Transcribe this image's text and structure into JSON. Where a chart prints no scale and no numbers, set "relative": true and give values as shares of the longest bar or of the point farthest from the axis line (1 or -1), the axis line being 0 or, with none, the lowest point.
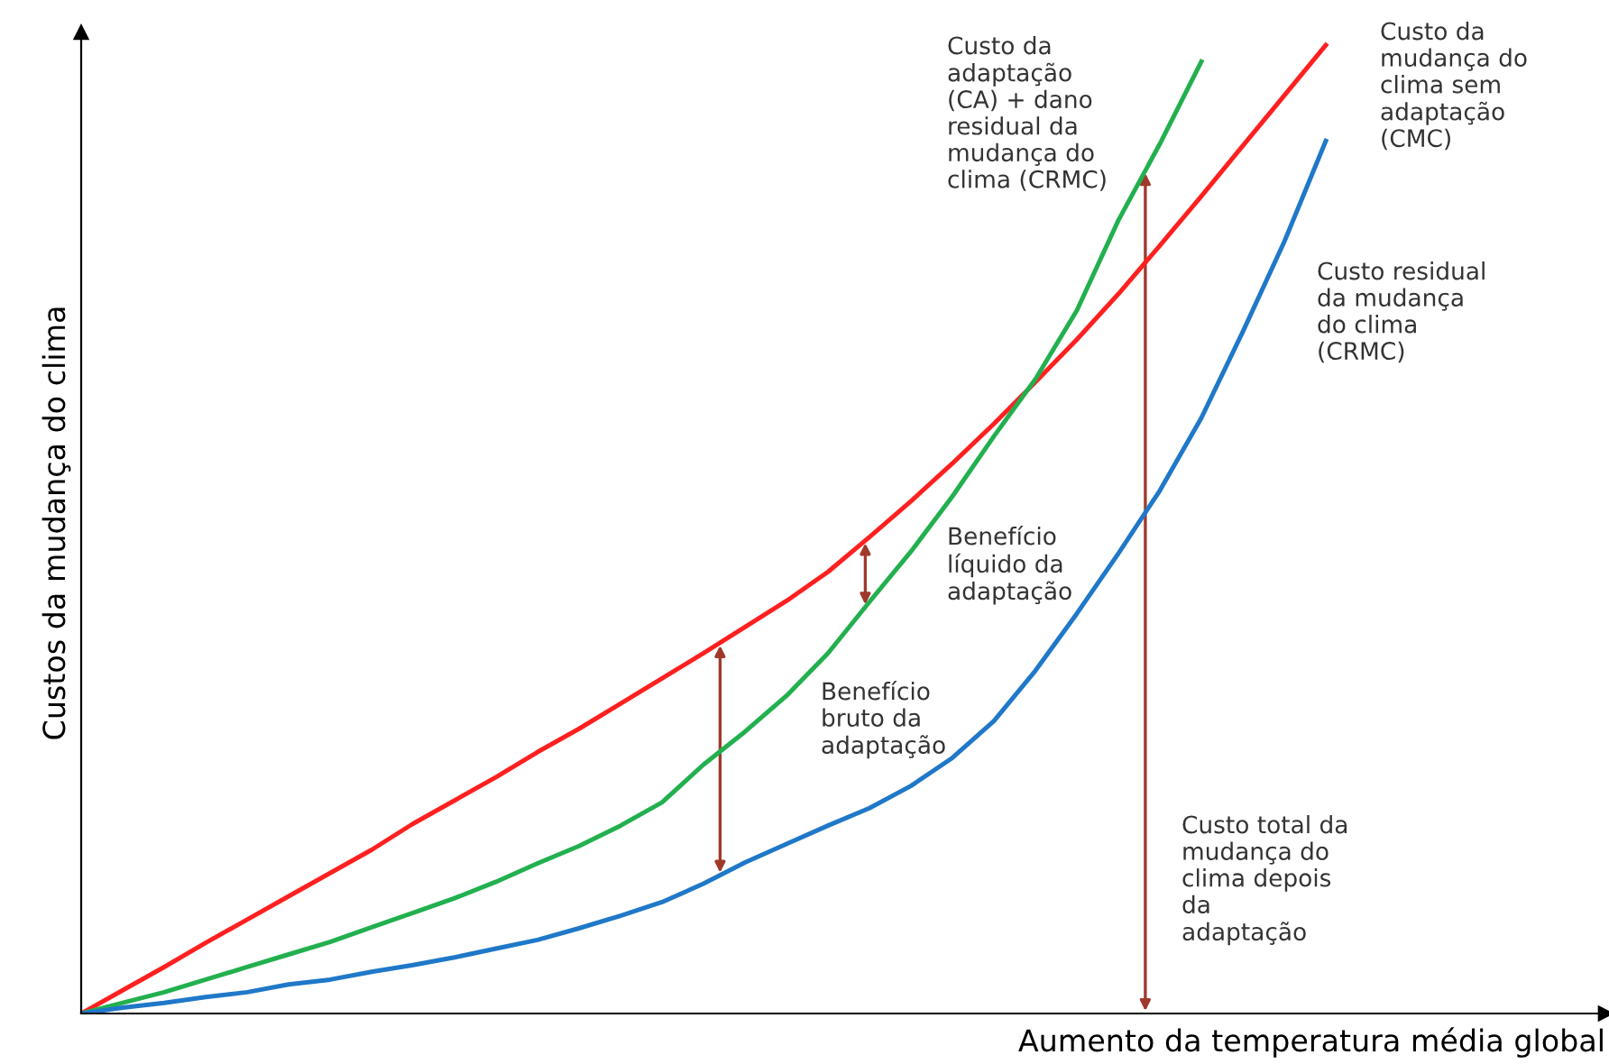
{
  "chart_data": {
    "type": "line",
    "relative": true,
    "xlabel": "Aumento da temperatura média global",
    "ylabel": "Custos da mudança do clima",
    "categories": [
      null,
      null,
      null,
      null,
      null,
      null,
      null,
      null,
      null,
      null,
      null,
      null,
      null,
      null,
      null,
      null,
      null,
      null,
      null,
      null,
      null,
      null,
      null,
      null,
      null,
      null,
      null,
      null,
      null,
      null,
      null
    ],
    "series": [
      {
        "name": "Custo da\nmudança do\nclima sem\nadaptação\n(CMC)",
        "color": "#ff2020",
        "values": [
          0,
          0.024,
          0.048,
          0.073,
          0.097,
          0.121,
          0.145,
          0.169,
          0.196,
          0.22,
          0.244,
          0.27,
          0.294,
          0.32,
          0.346,
          0.372,
          0.399,
          0.426,
          0.456,
          0.492,
          0.529,
          0.568,
          0.609,
          0.652,
          0.696,
          0.743,
          0.793,
          0.844,
          0.896,
          0.948,
          1
        ]
      },
      {
        "name": "Custo da\nadaptação\n(CA) + dano\nresidual da\nmudança do\nclima (CRMC)",
        "color": "#22b04f",
        "values": [
          0,
          0.011,
          0.022,
          0.035,
          0.048,
          0.061,
          0.074,
          0.089,
          0.104,
          0.119,
          0.136,
          0.155,
          0.173,
          0.194,
          0.218,
          0.257,
          0.291,
          0.328,
          0.372,
          0.425,
          0.477,
          0.534,
          0.596,
          0.655,
          0.726,
          0.819,
          0.898,
          0.983,
          null,
          null,
          null
        ]
      },
      {
        "name": "Custo residual\nda mudança\ndo clima\n(CRMC)",
        "color": "#1f78c8",
        "values": [
          0,
          0.006,
          0.011,
          0.017,
          0.022,
          0.03,
          0.035,
          0.043,
          0.05,
          0.058,
          0.067,
          0.076,
          0.088,
          0.101,
          0.115,
          0.134,
          0.156,
          0.175,
          0.194,
          0.212,
          0.235,
          0.264,
          0.302,
          0.354,
          0.413,
          0.475,
          0.54,
          0.615,
          0.704,
          0.797,
          0.901
        ]
      }
    ],
    "annotations": [
      "Benefício\nlíquido da\nadaptação",
      "Benefício\nbruto da\nadaptação",
      "Custo total da\nmudança do\nclima depois\nda\nadaptação"
    ]
  }
}
